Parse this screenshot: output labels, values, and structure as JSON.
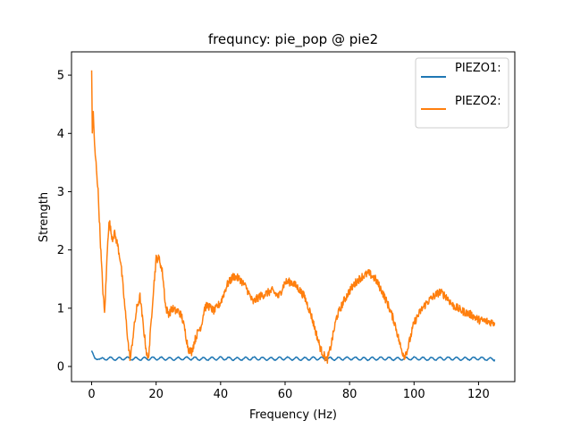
{
  "chart_data": {
    "type": "line",
    "title": "frequncy: pie_pop @ pie2",
    "xlabel": "Frequency (Hz)",
    "ylabel": "Strength",
    "xlim": [
      -6.25,
      131.25
    ],
    "ylim": [
      -0.26,
      5.4
    ],
    "xticks": [
      0,
      20,
      40,
      60,
      80,
      100,
      120
    ],
    "yticks": [
      0,
      1,
      2,
      3,
      4,
      5
    ],
    "grid": false,
    "legend_position": "top-right",
    "series": [
      {
        "name": "PIEZO1:",
        "color": "#1f77b4",
        "x": [
          0,
          0.5,
          1,
          2,
          3,
          5,
          8,
          10,
          15,
          20,
          25,
          30,
          35,
          40,
          45,
          50,
          55,
          60,
          65,
          70,
          75,
          80,
          85,
          90,
          95,
          100,
          105,
          110,
          115,
          120,
          125
        ],
        "y": [
          0.27,
          0.18,
          0.12,
          0.15,
          0.12,
          0.14,
          0.13,
          0.14,
          0.13,
          0.14,
          0.13,
          0.14,
          0.13,
          0.14,
          0.13,
          0.14,
          0.13,
          0.14,
          0.13,
          0.14,
          0.13,
          0.14,
          0.13,
          0.14,
          0.13,
          0.14,
          0.13,
          0.14,
          0.13,
          0.14,
          0.12
        ]
      },
      {
        "name": "PIEZO2:",
        "color": "#ff7f0e",
        "x": [
          0,
          0.2,
          0.5,
          0.8,
          1,
          1.5,
          2,
          2.5,
          3,
          3.5,
          4,
          4.5,
          5,
          5.5,
          6,
          6.5,
          7,
          8,
          9,
          10,
          11,
          11.5,
          12,
          13,
          14,
          15,
          16,
          17,
          17.5,
          18,
          19,
          20,
          21,
          22,
          23,
          24,
          25,
          26,
          27,
          28,
          29,
          30,
          31,
          32,
          33,
          34,
          35,
          36,
          38,
          40,
          42,
          44,
          46,
          48,
          50,
          52,
          54,
          56,
          58,
          60,
          62,
          64,
          66,
          68,
          70,
          71,
          72,
          73,
          74,
          76,
          78,
          80,
          82,
          84,
          86,
          88,
          90,
          92,
          94,
          96,
          97,
          98,
          100,
          102,
          104,
          106,
          108,
          110,
          112,
          115,
          118,
          120,
          122,
          125
        ],
        "y": [
          5.1,
          4.0,
          4.4,
          3.9,
          3.7,
          3.4,
          3.0,
          2.4,
          1.8,
          1.3,
          0.9,
          1.5,
          2.2,
          2.5,
          2.3,
          2.2,
          2.3,
          2.1,
          1.8,
          1.2,
          0.6,
          0.3,
          0.12,
          0.6,
          1.0,
          1.2,
          0.7,
          0.25,
          0.1,
          0.4,
          1.2,
          1.85,
          1.85,
          1.6,
          1.0,
          0.9,
          1.0,
          0.95,
          0.95,
          0.85,
          0.6,
          0.3,
          0.25,
          0.45,
          0.6,
          0.7,
          1.0,
          1.05,
          0.95,
          1.1,
          1.4,
          1.55,
          1.5,
          1.35,
          1.1,
          1.2,
          1.25,
          1.3,
          1.2,
          1.45,
          1.45,
          1.35,
          1.2,
          0.9,
          0.5,
          0.3,
          0.2,
          0.1,
          0.3,
          0.85,
          1.1,
          1.3,
          1.45,
          1.55,
          1.6,
          1.5,
          1.3,
          1.05,
          0.75,
          0.3,
          0.18,
          0.3,
          0.75,
          0.95,
          1.1,
          1.2,
          1.28,
          1.2,
          1.05,
          0.95,
          0.88,
          0.8,
          0.78,
          0.75
        ]
      }
    ]
  }
}
